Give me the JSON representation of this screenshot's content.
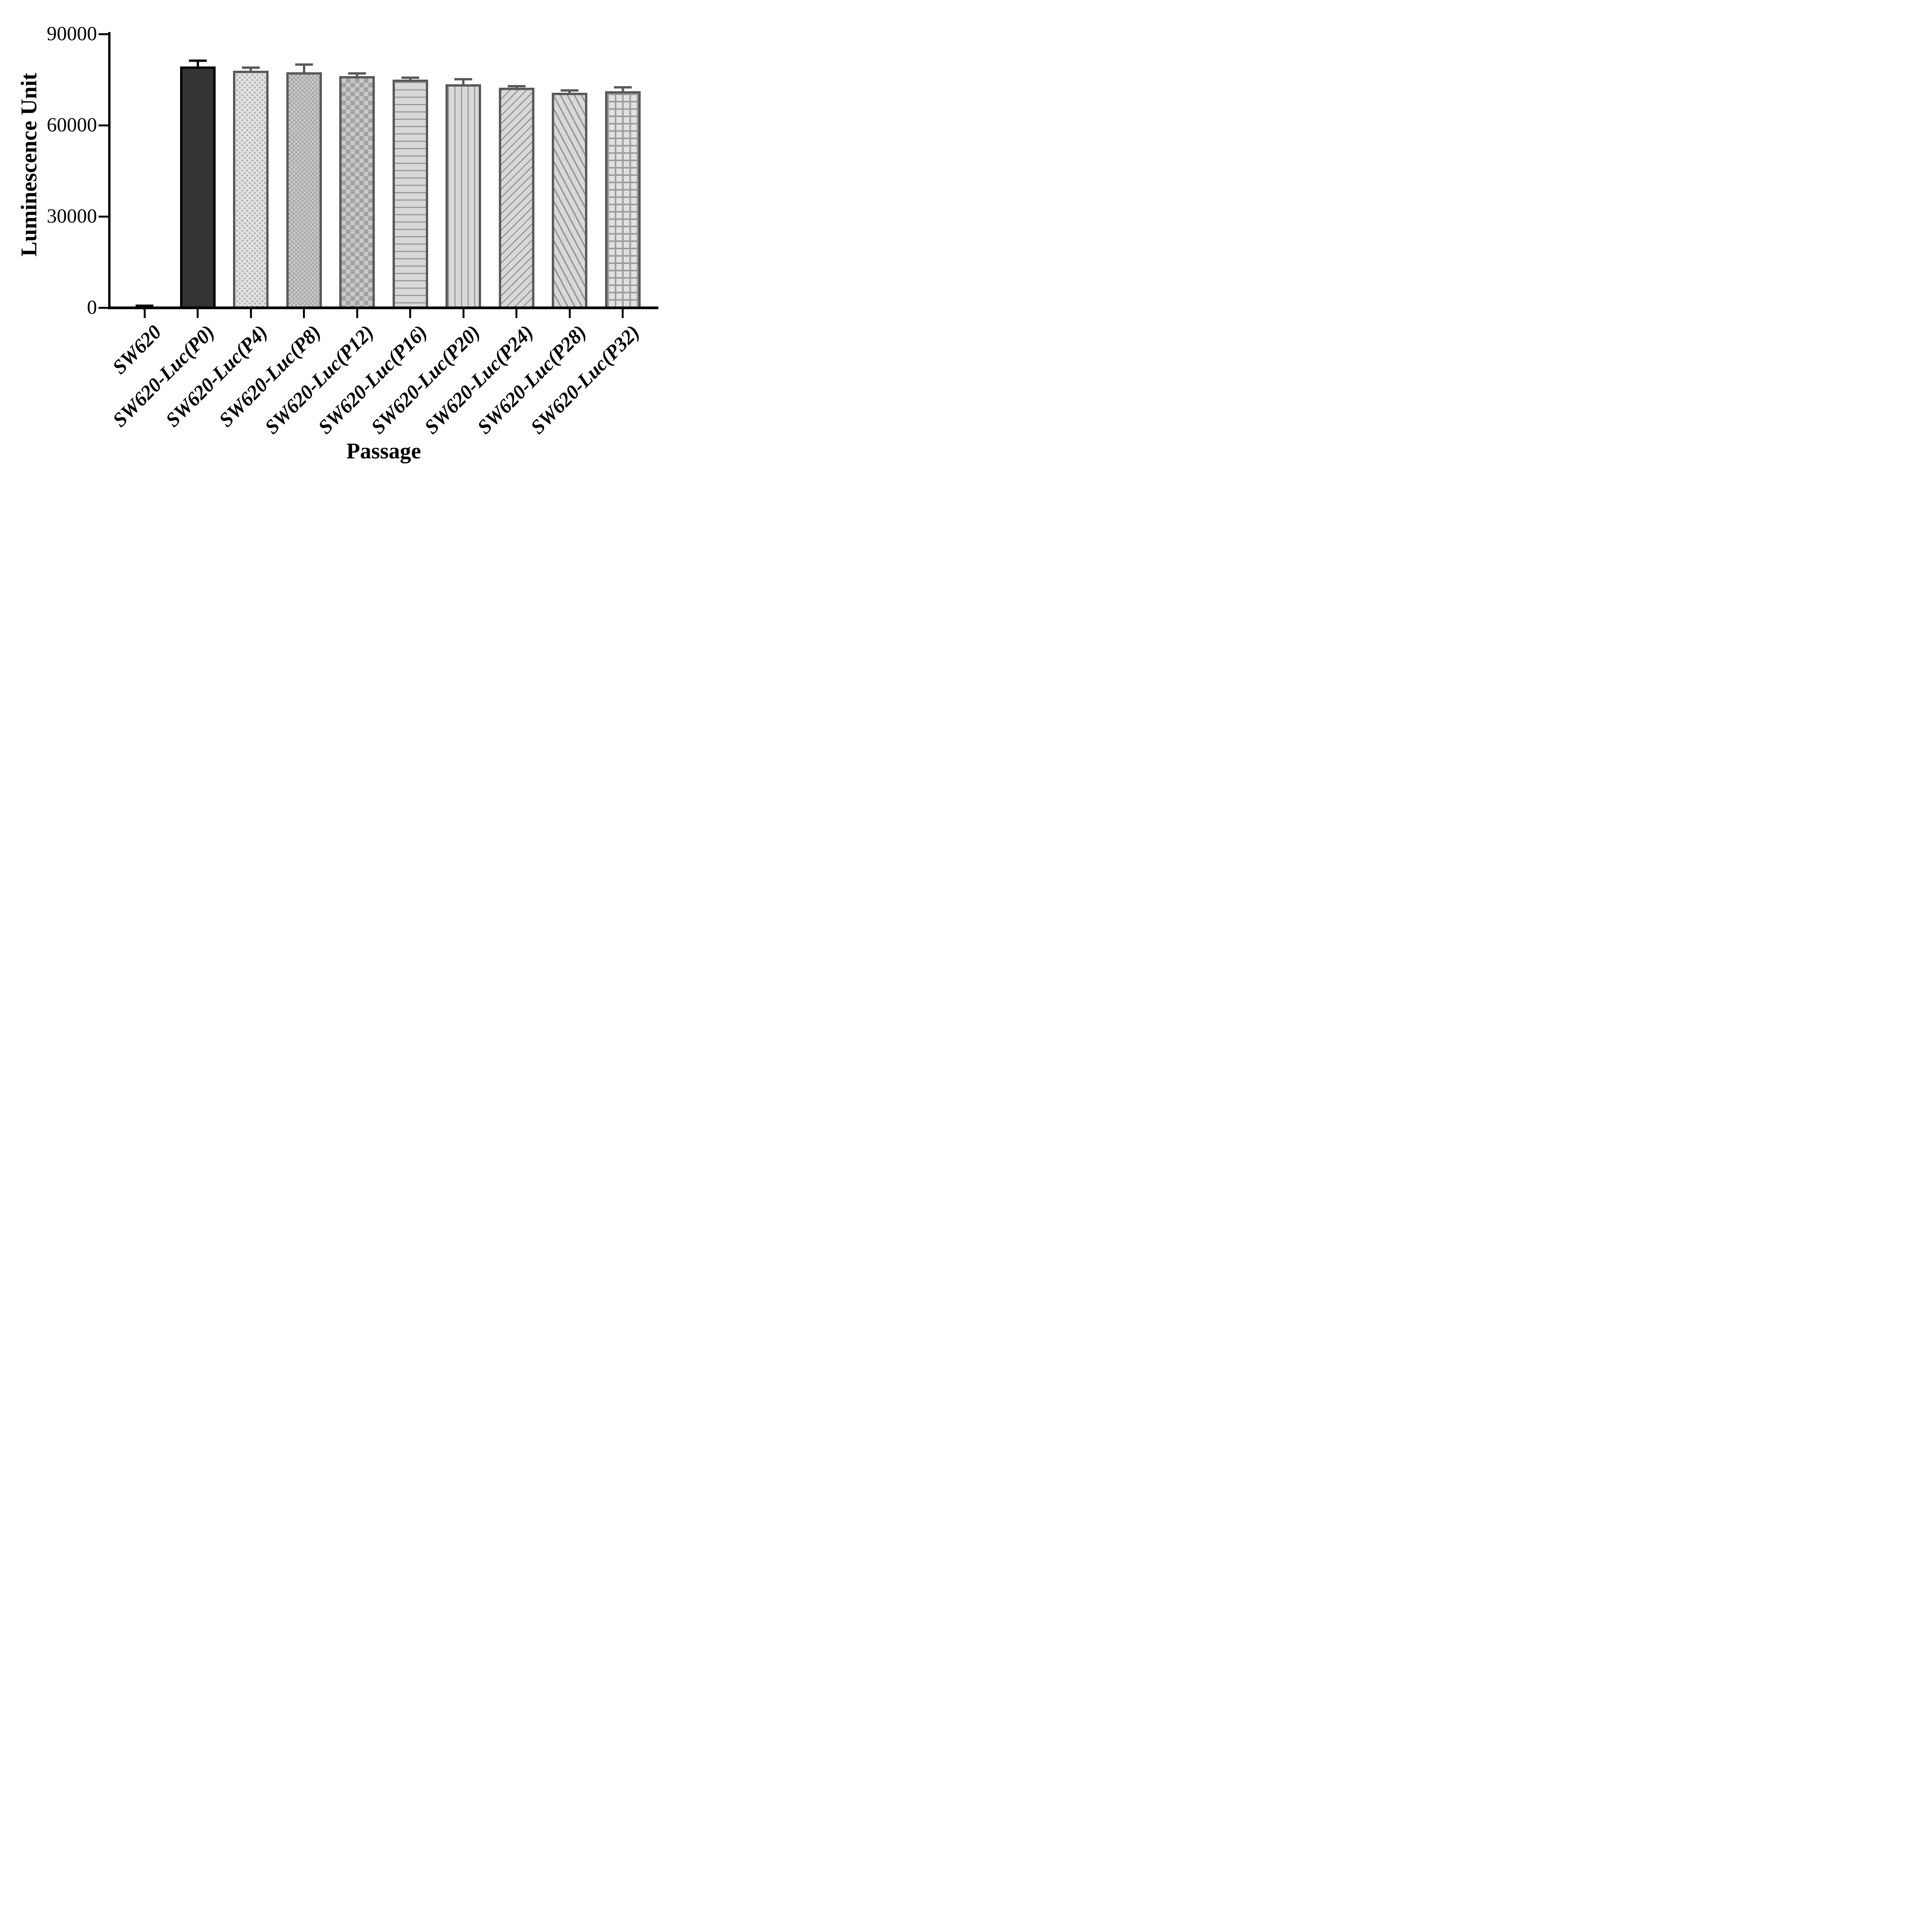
{
  "chart_data": {
    "type": "bar",
    "title": "",
    "xlabel": "Passage",
    "ylabel": "Luminescence Unit",
    "ylim": [
      0,
      90000
    ],
    "yticks": [
      0,
      30000,
      60000,
      90000
    ],
    "ytick_labels": [
      "0",
      "30000",
      "60000",
      "90000"
    ],
    "grid": false,
    "legend_position": "none",
    "categories": [
      "SW620",
      "SW620-Luc(P0)",
      "SW620-Luc(P4)",
      "SW620-Luc(P8)",
      "SW620-Luc(P12)",
      "SW620-Luc(P16)",
      "SW620-Luc(P20)",
      "SW620-Luc(P24)",
      "SW620-Luc(P28)",
      "SW620-Luc(P32)"
    ],
    "series": [
      {
        "name": "Luminescence Unit",
        "values": [
          250,
          79300,
          77900,
          77400,
          76100,
          75000,
          73500,
          72300,
          70700,
          71250
        ],
        "errors": [
          350,
          1900,
          1100,
          2500,
          900,
          600,
          1600,
          600,
          800,
          1200
        ],
        "error_direction": "up"
      }
    ],
    "bar_styles": [
      {
        "pattern": "solid",
        "fill": "#333333",
        "stroke": "#000000",
        "accent": "#333333",
        "error_color": "#000000"
      },
      {
        "pattern": "solid",
        "fill": "#333333",
        "stroke": "#000000",
        "accent": "#333333",
        "error_color": "#000000"
      },
      {
        "pattern": "dots",
        "fill": "#e0e0e0",
        "stroke": "#595959",
        "accent": "#a6a6a6",
        "error_color": "#595959"
      },
      {
        "pattern": "checker-fine",
        "fill": "#c9c9c9",
        "stroke": "#595959",
        "accent": "#a9a9a9",
        "error_color": "#595959"
      },
      {
        "pattern": "checker-coarse",
        "fill": "#c9c9c9",
        "stroke": "#595959",
        "accent": "#a2a2a2",
        "error_color": "#595959"
      },
      {
        "pattern": "hlines",
        "fill": "#d8d8d8",
        "stroke": "#595959",
        "accent": "#999999",
        "error_color": "#595959"
      },
      {
        "pattern": "vlines",
        "fill": "#d8d8d8",
        "stroke": "#595959",
        "accent": "#999999",
        "error_color": "#595959"
      },
      {
        "pattern": "diag-up",
        "fill": "#d8d8d8",
        "stroke": "#595959",
        "accent": "#999999",
        "error_color": "#595959"
      },
      {
        "pattern": "diag-down",
        "fill": "#d8d8d8",
        "stroke": "#595959",
        "accent": "#999999",
        "error_color": "#595959"
      },
      {
        "pattern": "grid",
        "fill": "#e0e0e0",
        "stroke": "#595959",
        "accent": "#9b9b9b",
        "error_color": "#595959"
      }
    ],
    "colors": {
      "axis": "#000000",
      "background": "#ffffff",
      "text": "#000000"
    }
  }
}
